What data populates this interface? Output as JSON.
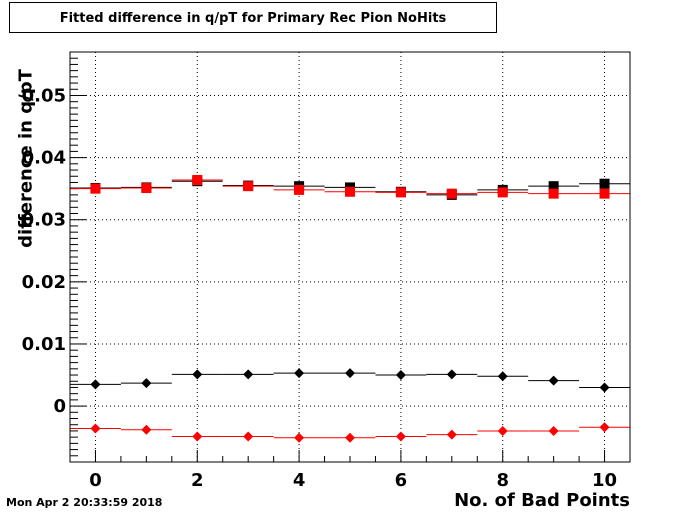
{
  "title": "Fitted difference in q/pT for Primary Rec Pion NoHits",
  "timestamp": "Mon Apr  2 20:33:59 2018",
  "chart_data": {
    "type": "scatter",
    "title": "Fitted difference in q/pT for Primary Rec Pion NoHits",
    "xlabel": "No. of Bad Points",
    "ylabel": "difference in q/pT",
    "xlim": [
      -0.5,
      10.5
    ],
    "ylim": [
      -0.009,
      0.057
    ],
    "grid": true,
    "x_ticks": [
      0,
      2,
      4,
      6,
      8,
      10
    ],
    "y_ticks": [
      0,
      0.01,
      0.02,
      0.03,
      0.04,
      0.05
    ],
    "y_tick_labels": [
      "0",
      "0.01",
      "0.02",
      "0.03",
      "0.04",
      "0.05"
    ],
    "x": [
      0,
      1,
      2,
      3,
      4,
      5,
      6,
      7,
      8,
      9,
      10
    ],
    "series": [
      {
        "marker": "square",
        "color": "#000000",
        "values": [
          0.0351,
          0.0352,
          0.0362,
          0.0355,
          0.0354,
          0.0352,
          0.0345,
          0.034,
          0.0348,
          0.0354,
          0.0358
        ]
      },
      {
        "marker": "square",
        "color": "#ff0000",
        "values": [
          0.035,
          0.0351,
          0.0364,
          0.0354,
          0.0348,
          0.0345,
          0.0344,
          0.0342,
          0.0344,
          0.0342,
          0.0342
        ]
      },
      {
        "marker": "diamond",
        "color": "#000000",
        "values": [
          0.0035,
          0.0037,
          0.0051,
          0.0051,
          0.0053,
          0.0053,
          0.005,
          0.0051,
          0.0048,
          0.0041,
          0.003
        ]
      },
      {
        "marker": "diamond",
        "color": "#ff0000",
        "values": [
          -0.0036,
          -0.0038,
          -0.0049,
          -0.0049,
          -0.0051,
          -0.0051,
          -0.0049,
          -0.0046,
          -0.004,
          -0.004,
          -0.0034
        ]
      }
    ]
  }
}
